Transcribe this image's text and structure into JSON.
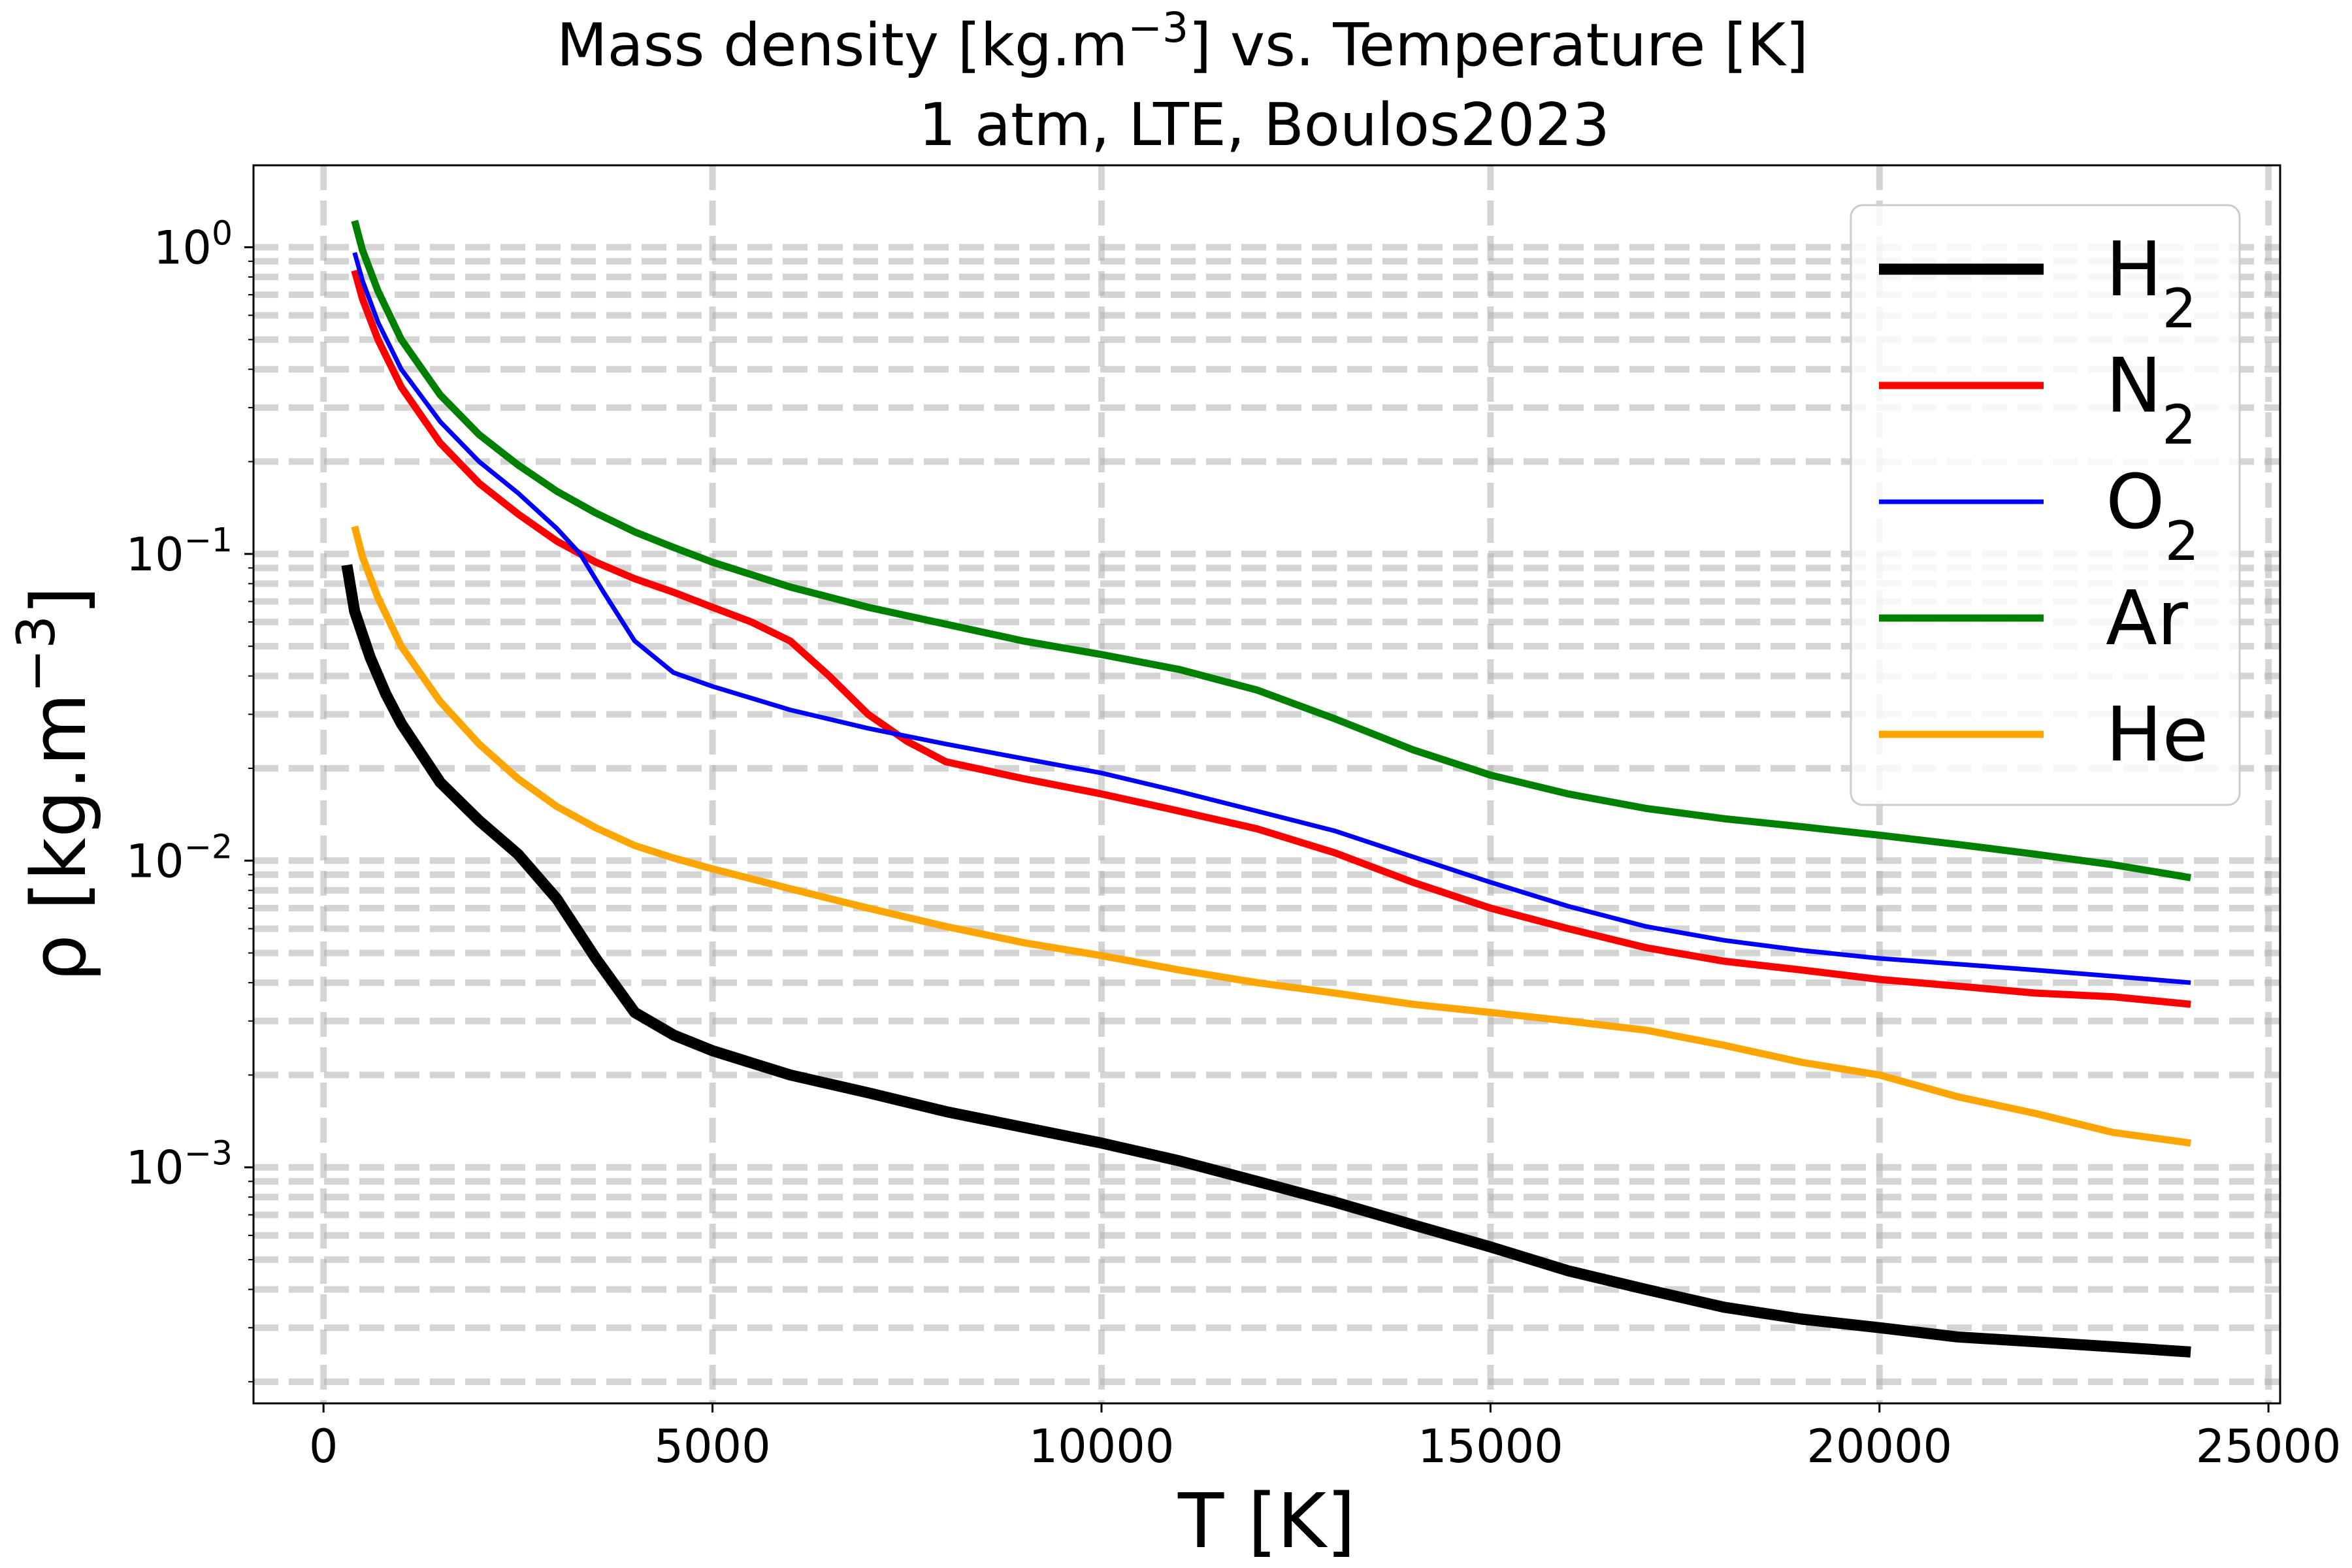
{
  "chart_data": {
    "type": "line",
    "title_line1": "Mass density [kg.m⁻³] vs. Temperature [K]",
    "title_line2": "1 atm, LTE, Boulos2023",
    "xlabel": "T [K]",
    "ylabel": "ρ [kg.m⁻³]",
    "x_scale": "linear",
    "y_scale": "log",
    "xlim": [
      -900,
      25150
    ],
    "ylim": [
      0.00017,
      1.85
    ],
    "x_ticks": [
      0,
      5000,
      10000,
      15000,
      20000,
      25000
    ],
    "x_tick_labels": [
      "0",
      "5000",
      "10000",
      "15000",
      "20000",
      "25000"
    ],
    "y_ticks": [
      0.001,
      0.01,
      0.1,
      1
    ],
    "y_tick_labels": [
      {
        "base": "10",
        "exp": "−3"
      },
      {
        "base": "10",
        "exp": "−2"
      },
      {
        "base": "10",
        "exp": "−1"
      },
      {
        "base": "10",
        "exp": "0"
      }
    ],
    "grid": true,
    "legend_position": "upper right",
    "series": [
      {
        "name": "H",
        "subscript": "2",
        "color": "#000000",
        "stroke_width": 17,
        "points": [
          [
            300,
            0.092
          ],
          [
            400,
            0.065
          ],
          [
            600,
            0.046
          ],
          [
            800,
            0.035
          ],
          [
            1000,
            0.028
          ],
          [
            1500,
            0.018
          ],
          [
            2000,
            0.0135
          ],
          [
            2500,
            0.0105
          ],
          [
            3000,
            0.0075
          ],
          [
            3500,
            0.0048
          ],
          [
            4000,
            0.0032
          ],
          [
            4500,
            0.0027
          ],
          [
            5000,
            0.0024
          ],
          [
            6000,
            0.002
          ],
          [
            7000,
            0.00175
          ],
          [
            8000,
            0.00152
          ],
          [
            9000,
            0.00135
          ],
          [
            10000,
            0.0012
          ],
          [
            11000,
            0.00105
          ],
          [
            12000,
            0.0009
          ],
          [
            13000,
            0.00077
          ],
          [
            14000,
            0.00065
          ],
          [
            15000,
            0.00055
          ],
          [
            16000,
            0.00046
          ],
          [
            17000,
            0.0004
          ],
          [
            18000,
            0.00035
          ],
          [
            19000,
            0.00032
          ],
          [
            20000,
            0.0003
          ],
          [
            21000,
            0.00028
          ],
          [
            22000,
            0.00027
          ],
          [
            23000,
            0.00026
          ],
          [
            24000,
            0.00025
          ]
        ]
      },
      {
        "name": "N",
        "subscript": "2",
        "color": "#ff0000",
        "stroke_width": 11,
        "points": [
          [
            400,
            0.84
          ],
          [
            500,
            0.68
          ],
          [
            700,
            0.5
          ],
          [
            1000,
            0.35
          ],
          [
            1500,
            0.23
          ],
          [
            2000,
            0.17
          ],
          [
            2500,
            0.135
          ],
          [
            3000,
            0.11
          ],
          [
            3500,
            0.094
          ],
          [
            4000,
            0.083
          ],
          [
            4500,
            0.075
          ],
          [
            5000,
            0.067
          ],
          [
            5500,
            0.06
          ],
          [
            6000,
            0.052
          ],
          [
            6500,
            0.04
          ],
          [
            7000,
            0.03
          ],
          [
            7500,
            0.0245
          ],
          [
            8000,
            0.021
          ],
          [
            9000,
            0.0185
          ],
          [
            10000,
            0.0165
          ],
          [
            11000,
            0.0145
          ],
          [
            12000,
            0.0127
          ],
          [
            13000,
            0.0106
          ],
          [
            14000,
            0.0085
          ],
          [
            15000,
            0.007
          ],
          [
            16000,
            0.006
          ],
          [
            17000,
            0.0052
          ],
          [
            18000,
            0.0047
          ],
          [
            19000,
            0.0044
          ],
          [
            20000,
            0.0041
          ],
          [
            21000,
            0.0039
          ],
          [
            22000,
            0.0037
          ],
          [
            23000,
            0.0036
          ],
          [
            24000,
            0.0034
          ]
        ]
      },
      {
        "name": "O",
        "subscript": "2",
        "color": "#0000ff",
        "stroke_width": 7,
        "points": [
          [
            400,
            0.96
          ],
          [
            500,
            0.78
          ],
          [
            700,
            0.57
          ],
          [
            1000,
            0.4
          ],
          [
            1500,
            0.27
          ],
          [
            2000,
            0.2
          ],
          [
            2500,
            0.158
          ],
          [
            3000,
            0.121
          ],
          [
            3300,
            0.1
          ],
          [
            3600,
            0.075
          ],
          [
            4000,
            0.052
          ],
          [
            4500,
            0.041
          ],
          [
            5000,
            0.037
          ],
          [
            6000,
            0.031
          ],
          [
            7000,
            0.027
          ],
          [
            8000,
            0.024
          ],
          [
            9000,
            0.0215
          ],
          [
            10000,
            0.0193
          ],
          [
            11000,
            0.0168
          ],
          [
            12000,
            0.0145
          ],
          [
            13000,
            0.0125
          ],
          [
            14000,
            0.0103
          ],
          [
            15000,
            0.0085
          ],
          [
            16000,
            0.0071
          ],
          [
            17000,
            0.0061
          ],
          [
            18000,
            0.0055
          ],
          [
            19000,
            0.0051
          ],
          [
            20000,
            0.0048
          ],
          [
            21000,
            0.0046
          ],
          [
            22000,
            0.0044
          ],
          [
            23000,
            0.0042
          ],
          [
            24000,
            0.004
          ]
        ]
      },
      {
        "name": "Ar",
        "subscript": "",
        "color": "#008000",
        "stroke_width": 11,
        "points": [
          [
            400,
            1.22
          ],
          [
            500,
            0.98
          ],
          [
            700,
            0.72
          ],
          [
            1000,
            0.5
          ],
          [
            1500,
            0.33
          ],
          [
            2000,
            0.245
          ],
          [
            2500,
            0.195
          ],
          [
            3000,
            0.16
          ],
          [
            3500,
            0.136
          ],
          [
            4000,
            0.118
          ],
          [
            4500,
            0.105
          ],
          [
            5000,
            0.094
          ],
          [
            6000,
            0.078
          ],
          [
            7000,
            0.067
          ],
          [
            8000,
            0.059
          ],
          [
            9000,
            0.052
          ],
          [
            10000,
            0.047
          ],
          [
            11000,
            0.042
          ],
          [
            12000,
            0.036
          ],
          [
            13000,
            0.029
          ],
          [
            14000,
            0.023
          ],
          [
            15000,
            0.019
          ],
          [
            16000,
            0.0165
          ],
          [
            17000,
            0.0148
          ],
          [
            18000,
            0.0137
          ],
          [
            19000,
            0.0129
          ],
          [
            20000,
            0.0121
          ],
          [
            21000,
            0.0113
          ],
          [
            22000,
            0.0105
          ],
          [
            23000,
            0.0097
          ],
          [
            24000,
            0.0088
          ]
        ]
      },
      {
        "name": "He",
        "subscript": "",
        "color": "#ffa500",
        "stroke_width": 11,
        "points": [
          [
            400,
            0.123
          ],
          [
            500,
            0.098
          ],
          [
            700,
            0.072
          ],
          [
            1000,
            0.05
          ],
          [
            1500,
            0.033
          ],
          [
            2000,
            0.024
          ],
          [
            2500,
            0.0185
          ],
          [
            3000,
            0.015
          ],
          [
            3500,
            0.0128
          ],
          [
            4000,
            0.0112
          ],
          [
            4500,
            0.0102
          ],
          [
            5000,
            0.0094
          ],
          [
            6000,
            0.0081
          ],
          [
            7000,
            0.007
          ],
          [
            8000,
            0.0061
          ],
          [
            9000,
            0.0054
          ],
          [
            10000,
            0.0049
          ],
          [
            11000,
            0.0044
          ],
          [
            12000,
            0.004
          ],
          [
            13000,
            0.0037
          ],
          [
            14000,
            0.0034
          ],
          [
            15000,
            0.0032
          ],
          [
            16000,
            0.003
          ],
          [
            17000,
            0.0028
          ],
          [
            18000,
            0.0025
          ],
          [
            19000,
            0.0022
          ],
          [
            20000,
            0.002
          ],
          [
            21000,
            0.0017
          ],
          [
            22000,
            0.0015
          ],
          [
            23000,
            0.0013
          ],
          [
            24000,
            0.0012
          ]
        ]
      }
    ]
  }
}
